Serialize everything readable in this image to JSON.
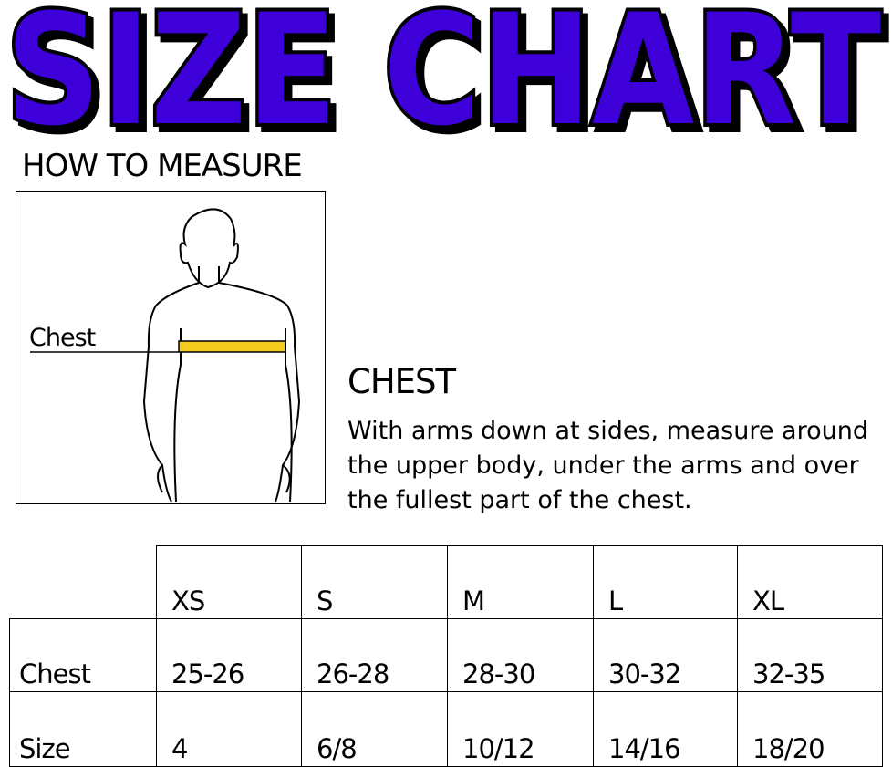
{
  "title": "SIZE CHART",
  "colors": {
    "title_fill": "#3d00d8",
    "title_outline": "#000000",
    "tape": "#f2cb1c"
  },
  "how_to_measure": "HOW TO MEASURE",
  "figure": {
    "chest_label": "Chest"
  },
  "chest": {
    "heading": "CHEST",
    "description": "With arms down at sides, measure around the upper body, under the arms and over the fullest part of the chest."
  },
  "table": {
    "headers": [
      "XS",
      "S",
      "M",
      "L",
      "XL"
    ],
    "rows": [
      {
        "label": "Chest",
        "values": [
          "25-26",
          "26-28",
          "28-30",
          "30-32",
          "32-35"
        ]
      },
      {
        "label": "Size",
        "values": [
          "4",
          "6/8",
          "10/12",
          "14/16",
          "18/20"
        ]
      }
    ]
  }
}
